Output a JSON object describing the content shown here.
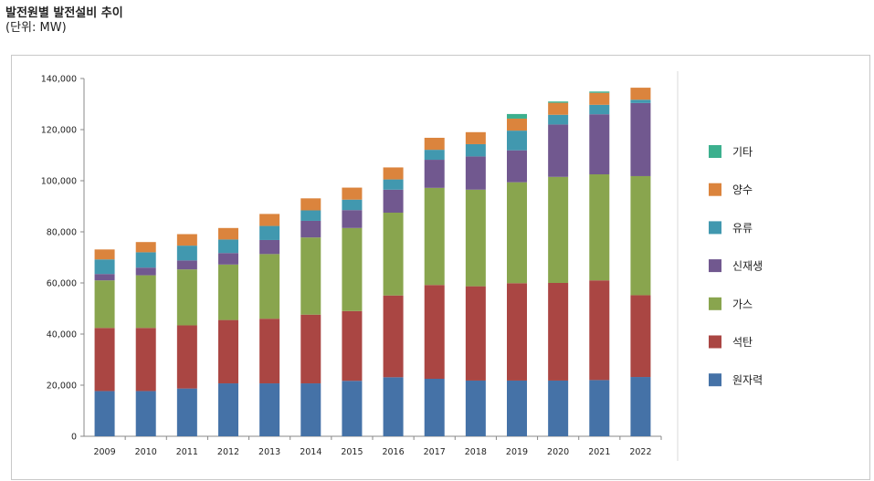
{
  "header": {
    "title": "발전원별 발전설비 추이",
    "unit": "(단위: MW)"
  },
  "chart_data": {
    "type": "bar",
    "stacked": true,
    "title": "발전원별 발전설비 추이",
    "subtitle": "(단위: MW)",
    "xlabel": "",
    "ylabel": "",
    "ylim": [
      0,
      140000
    ],
    "yticks": [
      0,
      20000,
      40000,
      60000,
      80000,
      100000,
      120000,
      140000
    ],
    "ytick_labels": [
      "0",
      "20,000",
      "40,000",
      "60,000",
      "80,000",
      "100,000",
      "120,000",
      "140,000"
    ],
    "grid": false,
    "legend_position": "right",
    "categories": [
      "2009",
      "2010",
      "2011",
      "2012",
      "2013",
      "2014",
      "2015",
      "2016",
      "2017",
      "2018",
      "2019",
      "2020",
      "2021",
      "2022"
    ],
    "series": [
      {
        "name": "원자력",
        "color": "#4572a7",
        "values": [
          17700,
          17700,
          18700,
          20700,
          20700,
          20700,
          21700,
          23100,
          22500,
          21800,
          21800,
          21800,
          22000,
          23200
        ]
      },
      {
        "name": "석탄",
        "color": "#aa4643",
        "values": [
          24700,
          24700,
          24700,
          24800,
          25300,
          26900,
          27300,
          32000,
          36700,
          36900,
          38100,
          38200,
          39000,
          32000
        ]
      },
      {
        "name": "가스",
        "color": "#89a54e",
        "values": [
          18600,
          20600,
          21900,
          21700,
          25300,
          30200,
          32500,
          32400,
          38000,
          37800,
          39500,
          41500,
          41500,
          46600
        ]
      },
      {
        "name": "신재생",
        "color": "#71588f",
        "values": [
          2500,
          3000,
          3500,
          4500,
          5500,
          6500,
          7000,
          9000,
          11000,
          13000,
          12500,
          20500,
          23500,
          28600
        ]
      },
      {
        "name": "유류",
        "color": "#4198af",
        "values": [
          5700,
          6000,
          5800,
          5300,
          5500,
          4100,
          4100,
          4000,
          3900,
          4800,
          7700,
          3800,
          3700,
          1300
        ]
      },
      {
        "name": "양수",
        "color": "#db843d",
        "values": [
          3900,
          4000,
          4500,
          4500,
          4700,
          4700,
          4700,
          4700,
          4700,
          4700,
          4700,
          4700,
          4700,
          4700
        ]
      },
      {
        "name": "기타",
        "color": "#3cb08e",
        "values": [
          0,
          0,
          0,
          0,
          0,
          0,
          0,
          0,
          0,
          0,
          1800,
          500,
          500,
          0
        ]
      }
    ]
  }
}
